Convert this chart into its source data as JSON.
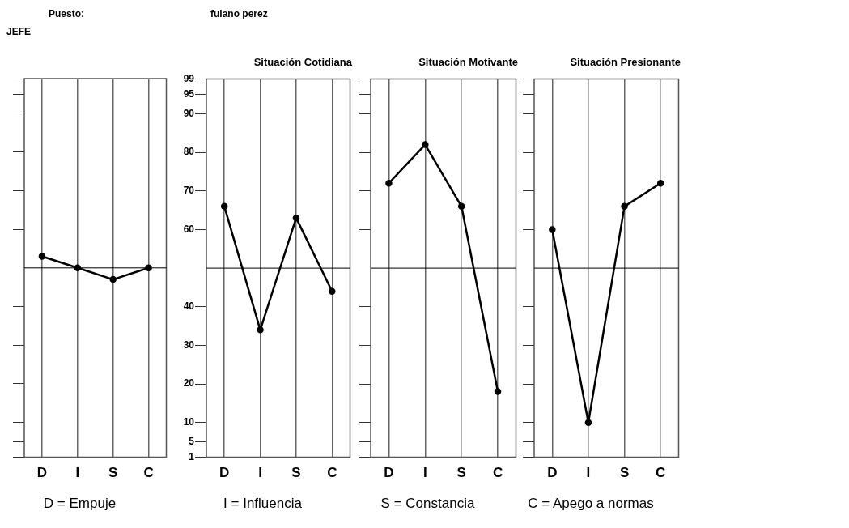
{
  "chart_data": [
    {
      "type": "line",
      "annotations": [
        "Puesto:",
        "JEFE"
      ],
      "xlabel": "D = Empuje",
      "categories": [
        "D",
        "I",
        "S",
        "C"
      ],
      "series": [
        {
          "color": "#000000",
          "values": [
            53,
            50,
            47,
            50
          ]
        }
      ],
      "ylim": [
        1,
        99
      ],
      "yticks": [
        99,
        95,
        90,
        80,
        70,
        60,
        40,
        30,
        20,
        10,
        5,
        1
      ],
      "tick_labels": "x",
      "grid": "x",
      "marker": "circle",
      "line_style": "solid",
      "legend": false,
      "ref_lines": [
        {
          "axis": "y",
          "value": 50,
          "color": "#000000"
        }
      ]
    },
    {
      "type": "line",
      "title": "Situación Cotidiana",
      "annotations": [
        "fulano perez"
      ],
      "xlabel": "I = Influencia",
      "categories": [
        "D",
        "I",
        "S",
        "C"
      ],
      "series": [
        {
          "color": "#000000",
          "values": [
            66,
            34,
            63,
            44
          ]
        }
      ],
      "ylim": [
        1,
        99
      ],
      "yticks": [
        99,
        95,
        90,
        80,
        70,
        60,
        40,
        30,
        20,
        10,
        5,
        1
      ],
      "grid": "x",
      "marker": "circle",
      "line_style": "solid",
      "legend": false,
      "ref_lines": [
        {
          "axis": "y",
          "value": 50,
          "color": "#000000"
        }
      ]
    },
    {
      "type": "line",
      "title": "Situación Motivante",
      "xlabel": "S = Constancia",
      "categories": [
        "D",
        "I",
        "S",
        "C"
      ],
      "series": [
        {
          "color": "#000000",
          "values": [
            72,
            82,
            66,
            18
          ]
        }
      ],
      "ylim": [
        1,
        99
      ],
      "yticks": [
        99,
        95,
        90,
        80,
        70,
        60,
        40,
        30,
        20,
        10,
        5,
        1
      ],
      "tick_labels": "x",
      "grid": "x",
      "marker": "circle",
      "line_style": "solid",
      "legend": false,
      "ref_lines": [
        {
          "axis": "y",
          "value": 50,
          "color": "#000000"
        }
      ]
    },
    {
      "type": "line",
      "title": "Situación Presionante",
      "xlabel": "C = Apego a normas",
      "categories": [
        "D",
        "I",
        "S",
        "C"
      ],
      "series": [
        {
          "color": "#000000",
          "values": [
            60,
            10,
            66,
            72
          ]
        }
      ],
      "ylim": [
        1,
        99
      ],
      "yticks": [
        99,
        95,
        90,
        80,
        70,
        60,
        40,
        30,
        20,
        10,
        5,
        1
      ],
      "tick_labels": "x",
      "grid": "x",
      "marker": "circle",
      "line_style": "solid",
      "legend": false,
      "ref_lines": [
        {
          "axis": "y",
          "value": 50,
          "color": "#000000"
        }
      ]
    }
  ]
}
